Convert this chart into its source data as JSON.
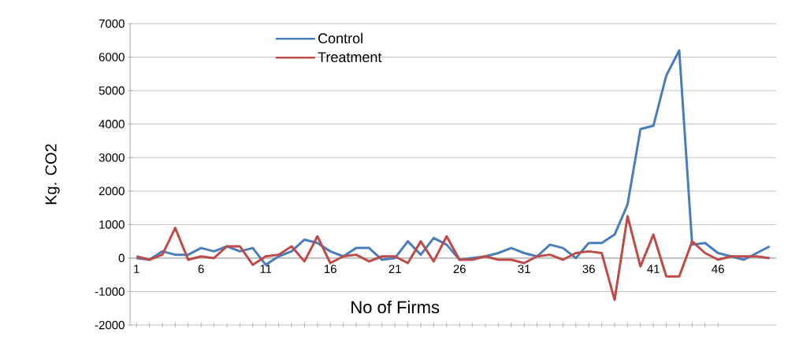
{
  "chart_data": {
    "type": "line",
    "xlabel": "No of Firms",
    "ylabel": "Kg. CO2",
    "x": [
      1,
      2,
      3,
      4,
      5,
      6,
      7,
      8,
      9,
      10,
      11,
      12,
      13,
      14,
      15,
      16,
      17,
      18,
      19,
      20,
      21,
      22,
      23,
      24,
      25,
      26,
      27,
      28,
      29,
      30,
      31,
      32,
      33,
      34,
      35,
      36,
      37,
      38,
      39,
      40,
      41,
      42,
      43,
      44,
      45,
      46,
      47,
      48,
      49,
      50
    ],
    "xlim": [
      0.5,
      50.5
    ],
    "xticks": [
      1,
      6,
      11,
      16,
      21,
      26,
      31,
      36,
      41,
      46
    ],
    "ylim": [
      -2000,
      7000
    ],
    "yticks": [
      -2000,
      -1000,
      0,
      1000,
      2000,
      3000,
      4000,
      5000,
      6000,
      7000
    ],
    "grid": "y",
    "legend": "top left",
    "marker": "none",
    "line_style": "solid",
    "series": [
      {
        "name": "Control",
        "color": "#4a7ebb",
        "values": [
          0,
          -50,
          200,
          100,
          100,
          300,
          200,
          350,
          200,
          300,
          -200,
          50,
          200,
          550,
          450,
          200,
          50,
          300,
          300,
          -50,
          0,
          500,
          100,
          600,
          400,
          -50,
          0,
          50,
          150,
          300,
          150,
          50,
          400,
          300,
          0,
          450,
          450,
          700,
          1600,
          3850,
          3950,
          5450,
          6200,
          400,
          450,
          150,
          50,
          -50,
          150,
          350
        ]
      },
      {
        "name": "Treatment",
        "color": "#be4b48",
        "values": [
          50,
          -50,
          100,
          900,
          -50,
          50,
          0,
          350,
          350,
          -200,
          50,
          100,
          350,
          -100,
          650,
          -150,
          50,
          100,
          -100,
          50,
          50,
          -150,
          500,
          -100,
          650,
          -50,
          -50,
          50,
          -50,
          -50,
          -150,
          50,
          100,
          -50,
          150,
          200,
          150,
          -1250,
          1250,
          -250,
          700,
          -550,
          -550,
          500,
          150,
          -50,
          50,
          50,
          50,
          0
        ]
      }
    ]
  }
}
